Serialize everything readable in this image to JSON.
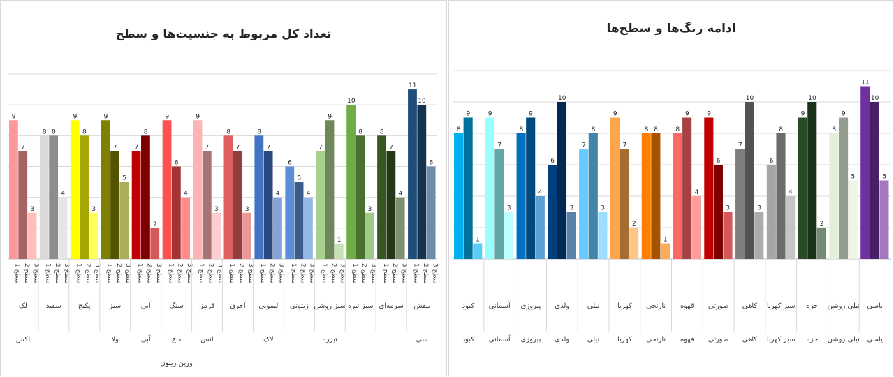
{
  "chart_data": [
    {
      "type": "bar",
      "title": "تعداد کل مربوط به جنسیت‌ها و سطح",
      "xlabel": "",
      "ylabel": "",
      "ylim": [
        0,
        12
      ],
      "grid": true,
      "legend": "none",
      "categories": [
        "لک",
        "سفید",
        "پکیج",
        "سبز",
        "آبی",
        "سنگ",
        "قرمز",
        "آجری",
        "لیمویی",
        "زیتونی",
        "سبز روشن",
        "سبز تیره",
        "سرمه‌ای",
        "بنفش"
      ],
      "subcategories": [
        "سطح 1",
        "سطح 2",
        "سطح 3"
      ],
      "group_colors": [
        "#ff9999",
        "#d9d9d9",
        "#ffff00",
        "#7f7f00",
        "#c00000",
        "#ff5050",
        "#ffb3b3",
        "#e06060",
        "#4472c4",
        "#5b8ed6",
        "#a9d18e",
        "#70ad47",
        "#375623",
        "#1f4e79"
      ],
      "series": [
        {
          "name": "",
          "values": [
            9,
            8,
            9,
            9,
            7,
            9,
            9,
            8,
            8,
            6,
            7,
            10,
            8,
            11
          ]
        },
        {
          "name": "",
          "values": [
            7,
            8,
            8,
            7,
            8,
            6,
            7,
            7,
            7,
            5,
            9,
            8,
            7,
            10
          ]
        },
        {
          "name": "",
          "values": [
            3,
            4,
            3,
            5,
            2,
            4,
            3,
            3,
            4,
            4,
            1,
            3,
            4,
            6
          ]
        }
      ],
      "bottom_labels": [
        "اکس",
        "",
        "",
        "ولا",
        "آبی",
        "داغ",
        "انس",
        "",
        "لاک",
        "",
        "تیرره",
        "",
        "",
        "سی"
      ],
      "extra_label": "ورین زیتون"
    },
    {
      "type": "bar",
      "title": "ادامه رنگ‌ها و سطح‌ها",
      "xlabel": "",
      "ylabel": "",
      "ylim": [
        0,
        12
      ],
      "grid": true,
      "legend": "none",
      "categories": [
        "کبود",
        "آسمانی",
        "پیروزی",
        "ولدی",
        "نیلی",
        "کهربا",
        "نارنجی",
        "قهوه",
        "صورتی",
        "کاهی",
        "سبز کهربا",
        "خزه",
        "نیلی روشن",
        "یاسی"
      ],
      "group_colors": [
        "#00b0f0",
        "#99ffff",
        "#0070c0",
        "#003f7f",
        "#66ccff",
        "#ffa64d",
        "#ff8000",
        "#ff6666",
        "#c00000",
        "#7f7f7f",
        "#a6a6a6",
        "#264d26",
        "#e2f0d9",
        "#7030a0"
      ],
      "series": [
        {
          "name": "",
          "values": [
            8,
            9,
            8,
            6,
            7,
            9,
            8,
            8,
            9,
            7,
            6,
            9,
            8,
            11
          ]
        },
        {
          "name": "",
          "values": [
            9,
            7,
            9,
            10,
            8,
            7,
            8,
            9,
            6,
            10,
            8,
            10,
            9,
            10
          ]
        },
        {
          "name": "",
          "values": [
            1,
            3,
            4,
            3,
            3,
            2,
            1,
            4,
            3,
            3,
            4,
            2,
            5,
            5
          ]
        }
      ],
      "bottom_labels": [
        "کبود",
        "آسمانی",
        "پیروزی",
        "ولدی",
        "نیلی",
        "کهربا",
        "نارنجی",
        "قهوه",
        "صورتی",
        "کاهی",
        "سبز کهربا",
        "خزه",
        "نیلی روشن",
        "یاسی"
      ]
    }
  ]
}
